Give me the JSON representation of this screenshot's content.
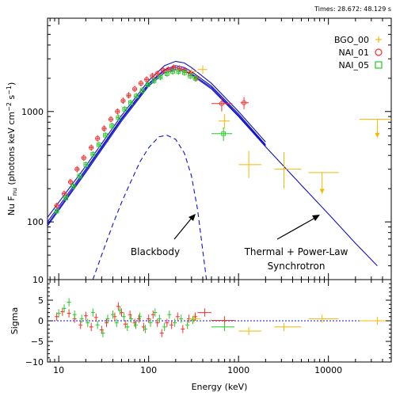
{
  "header": {
    "times": "Times: 28.672: 48.129 s"
  },
  "chart_data": [
    {
      "type": "scatter",
      "panel": "spectrum",
      "xlabel": "Energy (keV)",
      "ylabel": "Nu F",
      "ylabel_sub": "nu",
      "ylabel_units": " (photons keV cm",
      "ylabel_sup1": "−2",
      "ylabel_mid": " s",
      "ylabel_sup2": "−1",
      "ylabel_end": ")",
      "xscale": "log",
      "yscale": "log",
      "xlim": [
        7.5,
        50000
      ],
      "ylim": [
        30,
        7000
      ],
      "x_ticks": [
        10,
        100,
        1000,
        10000
      ],
      "x_tick_labels": [
        "10",
        "100",
        "1000",
        "10000"
      ],
      "y_ticks": [
        100,
        1000
      ],
      "y_tick_labels": [
        "100",
        "1000"
      ],
      "legend_position": "top-right",
      "legend": [
        {
          "label": "BGO_00",
          "marker": "plus",
          "color": "#f5b800"
        },
        {
          "label": "NAI_01",
          "marker": "circle",
          "color": "#ff2a2a"
        },
        {
          "label": "NAI_05",
          "marker": "square",
          "color": "#22cc22"
        }
      ],
      "annotations": [
        {
          "text": "Blackbody",
          "arrow_to": [
            250,
            70
          ]
        },
        {
          "text": "Thermal + Power-Law",
          "text2": "Synchrotron",
          "arrow_to": [
            3000,
            70
          ]
        }
      ],
      "model_color": "#1010cc",
      "models": [
        {
          "name": "model curve 1",
          "style": "solid",
          "x": [
            7.5,
            20,
            50,
            100,
            150,
            200,
            250,
            300,
            500,
            1000,
            2000,
            5000,
            10000,
            20000,
            35000
          ],
          "y": [
            92,
            280,
            820,
            1700,
            2250,
            2400,
            2320,
            2150,
            1600,
            900,
            480,
            215,
            118,
            64,
            40
          ]
        },
        {
          "name": "model curve 2",
          "style": "solid",
          "x": [
            7.5,
            20,
            50,
            100,
            150,
            200,
            250,
            300,
            500,
            1000,
            2000
          ],
          "y": [
            100,
            300,
            870,
            1800,
            2400,
            2600,
            2500,
            2300,
            1700,
            950,
            500
          ]
        },
        {
          "name": "model curve 3",
          "style": "solid",
          "x": [
            7.5,
            20,
            50,
            100,
            150,
            200,
            250,
            300,
            500,
            1000,
            2000
          ],
          "y": [
            110,
            320,
            920,
            1900,
            2600,
            2850,
            2750,
            2500,
            1800,
            1000,
            530
          ]
        },
        {
          "name": "model curve 4",
          "style": "solid",
          "x": [
            7.5,
            20,
            50,
            100,
            150,
            200,
            250,
            300,
            500,
            1000,
            2000
          ],
          "y": [
            95,
            290,
            850,
            1750,
            2350,
            2500,
            2400,
            2200,
            1650,
            920,
            490
          ]
        },
        {
          "name": "blackbody",
          "style": "dashed",
          "x": [
            24,
            30,
            40,
            50,
            60,
            80,
            100,
            130,
            160,
            200,
            250,
            300,
            350,
            400,
            440
          ],
          "y": [
            30,
            50,
            95,
            150,
            210,
            350,
            470,
            590,
            610,
            560,
            420,
            260,
            130,
            55,
            30
          ]
        }
      ],
      "series": [
        {
          "name": "BGO_00",
          "color": "#f5b800",
          "marker": "plus",
          "points": [
            {
              "x": 300,
              "y": 2300,
              "xlo": 250,
              "xhi": 350,
              "ylo": 2150,
              "yhi": 2450
            },
            {
              "x": 400,
              "y": 2400,
              "xlo": 350,
              "xhi": 450,
              "ylo": 2200,
              "yhi": 2600
            },
            {
              "x": 700,
              "y": 820,
              "xlo": 600,
              "xhi": 800,
              "ylo": 700,
              "yhi": 950
            },
            {
              "x": 1300,
              "y": 330,
              "xlo": 1000,
              "xhi": 1800,
              "ylo": 250,
              "yhi": 440
            },
            {
              "x": 3200,
              "y": 300,
              "xlo": 2500,
              "xhi": 5000,
              "ylo": 200,
              "yhi": 430
            },
            {
              "x": 8500,
              "y": 280,
              "xlo": 6000,
              "xhi": 13000,
              "ylo": 280,
              "yhi": 280,
              "upper_limit": true,
              "arrow_to": 180
            },
            {
              "x": 35000,
              "y": 850,
              "xlo": 22000,
              "xhi": 50000,
              "ylo": 850,
              "yhi": 850,
              "upper_limit": true,
              "arrow_to": 580
            }
          ]
        },
        {
          "name": "NAI_01",
          "color": "#ff2a2a",
          "marker": "circle",
          "points": [
            {
              "x": 9.5,
              "y": 140
            },
            {
              "x": 11.5,
              "y": 180
            },
            {
              "x": 13.5,
              "y": 230
            },
            {
              "x": 16,
              "y": 300
            },
            {
              "x": 19,
              "y": 380
            },
            {
              "x": 23,
              "y": 470
            },
            {
              "x": 27,
              "y": 570
            },
            {
              "x": 32,
              "y": 700
            },
            {
              "x": 38,
              "y": 850
            },
            {
              "x": 45,
              "y": 1000
            },
            {
              "x": 52,
              "y": 1250
            },
            {
              "x": 60,
              "y": 1400
            },
            {
              "x": 70,
              "y": 1600
            },
            {
              "x": 82,
              "y": 1800
            },
            {
              "x": 95,
              "y": 1950
            },
            {
              "x": 110,
              "y": 2100
            },
            {
              "x": 125,
              "y": 2200
            },
            {
              "x": 145,
              "y": 2350
            },
            {
              "x": 165,
              "y": 2400
            },
            {
              "x": 190,
              "y": 2500
            },
            {
              "x": 220,
              "y": 2450
            },
            {
              "x": 250,
              "y": 2350
            },
            {
              "x": 290,
              "y": 2200
            },
            {
              "x": 340,
              "y": 2000
            },
            {
              "x": 650,
              "y": 1180,
              "xlo": 500,
              "xhi": 850,
              "ylo": 1000,
              "yhi": 1350
            },
            {
              "x": 1150,
              "y": 1200,
              "xlo": 1050,
              "xhi": 1300,
              "ylo": 1050,
              "yhi": 1350
            }
          ]
        },
        {
          "name": "NAI_05",
          "color": "#22cc22",
          "marker": "square",
          "points": [
            {
              "x": 9.5,
              "y": 125
            },
            {
              "x": 12,
              "y": 165
            },
            {
              "x": 14.5,
              "y": 210
            },
            {
              "x": 17,
              "y": 260
            },
            {
              "x": 20,
              "y": 330
            },
            {
              "x": 24,
              "y": 410
            },
            {
              "x": 28,
              "y": 500
            },
            {
              "x": 33,
              "y": 610
            },
            {
              "x": 39,
              "y": 740
            },
            {
              "x": 46,
              "y": 880
            },
            {
              "x": 54,
              "y": 1050
            },
            {
              "x": 63,
              "y": 1200
            },
            {
              "x": 73,
              "y": 1380
            },
            {
              "x": 85,
              "y": 1550
            },
            {
              "x": 98,
              "y": 1750
            },
            {
              "x": 115,
              "y": 1900
            },
            {
              "x": 135,
              "y": 2050
            },
            {
              "x": 160,
              "y": 2200
            },
            {
              "x": 185,
              "y": 2300
            },
            {
              "x": 215,
              "y": 2300
            },
            {
              "x": 250,
              "y": 2250
            },
            {
              "x": 290,
              "y": 2100
            },
            {
              "x": 330,
              "y": 2000
            },
            {
              "x": 680,
              "y": 630,
              "xlo": 500,
              "xhi": 850,
              "ylo": 540,
              "yhi": 720
            }
          ]
        }
      ]
    },
    {
      "type": "scatter",
      "panel": "residuals",
      "xlabel": "Energy (keV)",
      "ylabel": "Sigma",
      "xscale": "log",
      "xlim": [
        7.5,
        50000
      ],
      "ylim": [
        -10,
        10
      ],
      "x_ticks": [
        10,
        100,
        1000,
        10000
      ],
      "x_tick_labels": [
        "10",
        "100",
        "1000",
        "10000"
      ],
      "y_ticks": [
        -10,
        -5,
        0,
        5,
        10
      ],
      "y_tick_labels": [
        "−10",
        "−5",
        "0",
        "5",
        "10"
      ],
      "zero_line": "dotted",
      "zero_line_color": "#1010cc",
      "series": [
        {
          "name": "NAI_01",
          "color": "#ff2a2a",
          "points": [
            {
              "x": 9.5,
              "y": 1.0
            },
            {
              "x": 11,
              "y": 2.2
            },
            {
              "x": 13,
              "y": 1.8
            },
            {
              "x": 15,
              "y": 0.5
            },
            {
              "x": 17.5,
              "y": -1.0
            },
            {
              "x": 20,
              "y": 1.2
            },
            {
              "x": 23,
              "y": -1.5
            },
            {
              "x": 26,
              "y": 0.8
            },
            {
              "x": 30,
              "y": -2.2
            },
            {
              "x": 34,
              "y": -0.5
            },
            {
              "x": 42,
              "y": 1.0
            },
            {
              "x": 46,
              "y": 3.5
            },
            {
              "x": 50,
              "y": 2.0
            },
            {
              "x": 55,
              "y": -0.8
            },
            {
              "x": 62,
              "y": 1.5
            },
            {
              "x": 70,
              "y": -0.5
            },
            {
              "x": 78,
              "y": 0.5
            },
            {
              "x": 88,
              "y": -1.5
            },
            {
              "x": 100,
              "y": 0.5
            },
            {
              "x": 112,
              "y": 1.5
            },
            {
              "x": 125,
              "y": -0.5
            },
            {
              "x": 140,
              "y": -3.0
            },
            {
              "x": 160,
              "y": -0.5
            },
            {
              "x": 180,
              "y": -1.0
            },
            {
              "x": 210,
              "y": 1.0
            },
            {
              "x": 240,
              "y": -2.0
            },
            {
              "x": 280,
              "y": 0.5
            },
            {
              "x": 330,
              "y": 1.0
            },
            {
              "x": 420,
              "y": 2.0,
              "xlo": 350,
              "xhi": 500
            },
            {
              "x": 700,
              "y": 0.1,
              "xlo": 500,
              "xhi": 900
            }
          ]
        },
        {
          "name": "NAI_05",
          "color": "#22cc22",
          "points": [
            {
              "x": 10,
              "y": 1.8
            },
            {
              "x": 11.5,
              "y": 3.0
            },
            {
              "x": 13,
              "y": 4.5
            },
            {
              "x": 15,
              "y": 1.5
            },
            {
              "x": 18,
              "y": 0.5
            },
            {
              "x": 21,
              "y": -0.5
            },
            {
              "x": 24,
              "y": 2.0
            },
            {
              "x": 27,
              "y": -1.0
            },
            {
              "x": 31,
              "y": -3.0
            },
            {
              "x": 35,
              "y": 0.5
            },
            {
              "x": 40,
              "y": 1.5
            },
            {
              "x": 44,
              "y": -0.5
            },
            {
              "x": 48,
              "y": 2.5
            },
            {
              "x": 53,
              "y": 1.0
            },
            {
              "x": 58,
              "y": -1.5
            },
            {
              "x": 64,
              "y": 0.5
            },
            {
              "x": 72,
              "y": -1.0
            },
            {
              "x": 80,
              "y": 1.0
            },
            {
              "x": 92,
              "y": -2.0
            },
            {
              "x": 105,
              "y": -0.5
            },
            {
              "x": 118,
              "y": 2.0
            },
            {
              "x": 132,
              "y": 0.5
            },
            {
              "x": 150,
              "y": -1.5
            },
            {
              "x": 170,
              "y": 1.5
            },
            {
              "x": 195,
              "y": -0.5
            },
            {
              "x": 230,
              "y": 0.5
            },
            {
              "x": 270,
              "y": -1.0
            },
            {
              "x": 310,
              "y": 0.2
            },
            {
              "x": 700,
              "y": -1.5,
              "xlo": 500,
              "xhi": 900
            }
          ]
        },
        {
          "name": "BGO_00",
          "color": "#f5b800",
          "points": [
            {
              "x": 320,
              "y": 0.5,
              "xlo": 280,
              "xhi": 380
            },
            {
              "x": 1300,
              "y": -2.5,
              "xlo": 1000,
              "xhi": 1800
            },
            {
              "x": 3200,
              "y": -1.5,
              "xlo": 2500,
              "xhi": 5000
            },
            {
              "x": 8500,
              "y": 0.5,
              "xlo": 6000,
              "xhi": 13000
            },
            {
              "x": 35000,
              "y": 0.0,
              "xlo": 22000,
              "xhi": 50000
            }
          ]
        }
      ]
    }
  ]
}
